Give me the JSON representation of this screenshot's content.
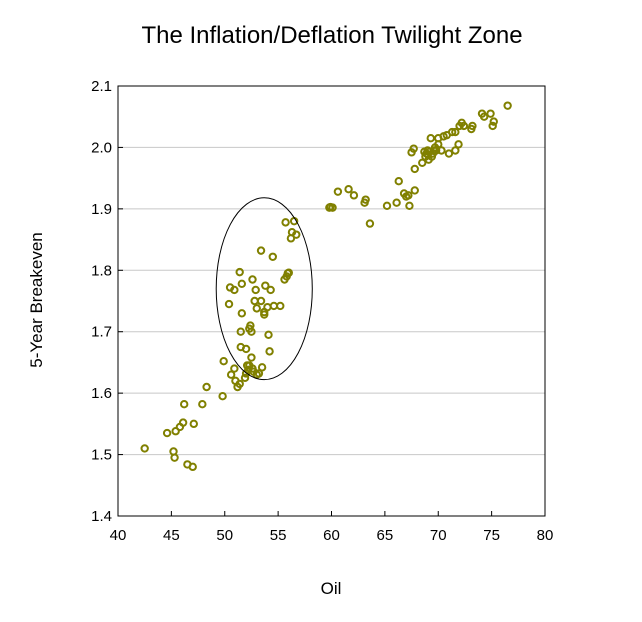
{
  "chart_data": {
    "type": "scatter",
    "title": "The Inflation/Deflation Twilight Zone",
    "xlabel": "Oil",
    "ylabel": "5-Year Breakeven",
    "xlim": [
      40,
      80
    ],
    "ylim": [
      1.4,
      2.1
    ],
    "x_ticks": [
      "40",
      "45",
      "50",
      "55",
      "60",
      "65",
      "70",
      "75",
      "80"
    ],
    "y_ticks": [
      "1.4",
      "1.5",
      "1.6",
      "1.7",
      "1.8",
      "1.9",
      "2.0",
      "2.1"
    ],
    "grid": "horizontal",
    "legend": "none",
    "marker_color": "#808000",
    "highlight": {
      "shape": "ellipse",
      "center": [
        53.7,
        1.77
      ],
      "radii": [
        4.5,
        0.148
      ]
    },
    "points": [
      [
        42.5,
        1.51
      ],
      [
        44.6,
        1.535
      ],
      [
        45.2,
        1.505
      ],
      [
        45.3,
        1.495
      ],
      [
        45.4,
        1.538
      ],
      [
        45.8,
        1.545
      ],
      [
        46.1,
        1.552
      ],
      [
        46.2,
        1.582
      ],
      [
        46.5,
        1.484
      ],
      [
        47.0,
        1.48
      ],
      [
        47.1,
        1.55
      ],
      [
        47.9,
        1.582
      ],
      [
        48.3,
        1.61
      ],
      [
        49.8,
        1.595
      ],
      [
        49.9,
        1.652
      ],
      [
        50.4,
        1.745
      ],
      [
        50.5,
        1.772
      ],
      [
        50.6,
        1.63
      ],
      [
        50.9,
        1.768
      ],
      [
        50.9,
        1.64
      ],
      [
        51.0,
        1.62
      ],
      [
        51.2,
        1.61
      ],
      [
        51.4,
        1.797
      ],
      [
        51.4,
        1.615
      ],
      [
        51.5,
        1.7
      ],
      [
        51.5,
        1.675
      ],
      [
        51.6,
        1.73
      ],
      [
        51.6,
        1.778
      ],
      [
        51.9,
        1.625
      ],
      [
        52.0,
        1.632
      ],
      [
        52.0,
        1.672
      ],
      [
        52.1,
        1.645
      ],
      [
        52.2,
        1.638
      ],
      [
        52.3,
        1.645
      ],
      [
        52.3,
        1.705
      ],
      [
        52.4,
        1.71
      ],
      [
        52.5,
        1.7
      ],
      [
        52.5,
        1.658
      ],
      [
        52.6,
        1.785
      ],
      [
        52.6,
        1.64
      ],
      [
        52.7,
        1.635
      ],
      [
        52.8,
        1.75
      ],
      [
        52.9,
        1.768
      ],
      [
        53.0,
        1.738
      ],
      [
        53.0,
        1.63
      ],
      [
        53.2,
        1.632
      ],
      [
        53.4,
        1.75
      ],
      [
        53.4,
        1.832
      ],
      [
        53.5,
        1.642
      ],
      [
        53.7,
        1.732
      ],
      [
        53.7,
        1.728
      ],
      [
        53.8,
        1.775
      ],
      [
        54.0,
        1.74
      ],
      [
        54.1,
        1.695
      ],
      [
        54.2,
        1.668
      ],
      [
        54.3,
        1.768
      ],
      [
        54.5,
        1.822
      ],
      [
        54.6,
        1.742
      ],
      [
        55.2,
        1.742
      ],
      [
        55.6,
        1.785
      ],
      [
        55.7,
        1.878
      ],
      [
        55.8,
        1.79
      ],
      [
        55.9,
        1.795
      ],
      [
        56.0,
        1.796
      ],
      [
        56.2,
        1.852
      ],
      [
        56.3,
        1.862
      ],
      [
        56.5,
        1.88
      ],
      [
        56.7,
        1.858
      ],
      [
        59.8,
        1.902
      ],
      [
        59.9,
        1.903
      ],
      [
        60.1,
        1.902
      ],
      [
        60.6,
        1.928
      ],
      [
        61.6,
        1.932
      ],
      [
        62.1,
        1.922
      ],
      [
        63.1,
        1.91
      ],
      [
        63.2,
        1.915
      ],
      [
        63.6,
        1.876
      ],
      [
        65.2,
        1.905
      ],
      [
        66.1,
        1.91
      ],
      [
        66.3,
        1.945
      ],
      [
        66.8,
        1.925
      ],
      [
        67.0,
        1.92
      ],
      [
        67.2,
        1.922
      ],
      [
        67.3,
        1.905
      ],
      [
        67.5,
        1.992
      ],
      [
        67.7,
        1.998
      ],
      [
        67.8,
        1.93
      ],
      [
        67.8,
        1.965
      ],
      [
        68.5,
        1.975
      ],
      [
        68.7,
        1.993
      ],
      [
        68.8,
        1.985
      ],
      [
        68.9,
        1.99
      ],
      [
        69.0,
        1.995
      ],
      [
        69.1,
        1.98
      ],
      [
        69.2,
        1.993
      ],
      [
        69.3,
        2.015
      ],
      [
        69.4,
        1.985
      ],
      [
        69.5,
        1.99
      ],
      [
        69.6,
        1.995
      ],
      [
        69.7,
        2.0
      ],
      [
        69.8,
        1.995
      ],
      [
        70.0,
        2.005
      ],
      [
        70.0,
        2.015
      ],
      [
        70.3,
        1.995
      ],
      [
        70.5,
        2.018
      ],
      [
        70.8,
        2.02
      ],
      [
        71.0,
        1.99
      ],
      [
        71.3,
        2.025
      ],
      [
        71.6,
        2.025
      ],
      [
        71.6,
        1.995
      ],
      [
        71.9,
        2.005
      ],
      [
        72.0,
        2.035
      ],
      [
        72.2,
        2.04
      ],
      [
        72.4,
        2.035
      ],
      [
        73.1,
        2.03
      ],
      [
        73.2,
        2.035
      ],
      [
        74.1,
        2.055
      ],
      [
        74.3,
        2.05
      ],
      [
        74.9,
        2.055
      ],
      [
        75.1,
        2.035
      ],
      [
        75.2,
        2.042
      ],
      [
        76.5,
        2.068
      ]
    ]
  }
}
